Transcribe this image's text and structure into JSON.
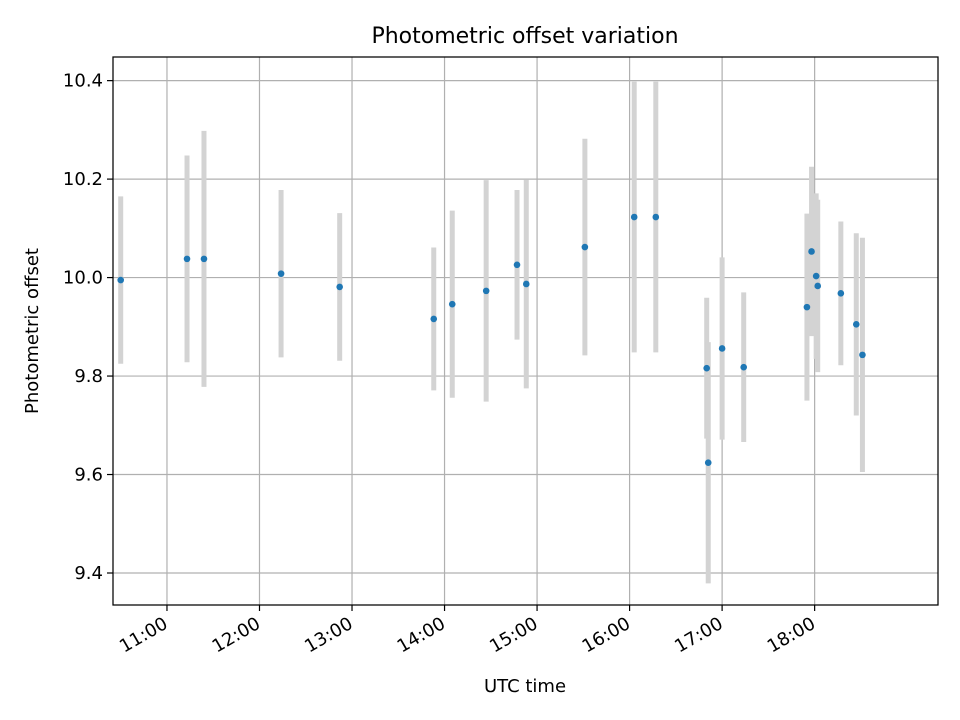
{
  "chart_data": {
    "type": "scatter",
    "title": "Photometric offset variation",
    "xlabel": "UTC time",
    "ylabel": "Photometric offset",
    "x_unit": "UTC time of day (HH:MM)",
    "xlim": [
      "10:25",
      "19:20"
    ],
    "ylim": [
      9.335,
      10.448
    ],
    "x_ticks": [
      "11:00",
      "12:00",
      "13:00",
      "14:00",
      "15:00",
      "16:00",
      "17:00",
      "18:00"
    ],
    "y_ticks": [
      9.4,
      9.6,
      9.8,
      10.0,
      10.2,
      10.4
    ],
    "y_tick_labels": [
      "9.4",
      "9.6",
      "9.8",
      "10.0",
      "10.2",
      "10.4"
    ],
    "grid": true,
    "marker_color": "#1f77b4",
    "errorbar_color": "#d3d3d3",
    "points": [
      {
        "x": "10:30",
        "y": 9.995,
        "yerr": 0.17
      },
      {
        "x": "11:13",
        "y": 10.038,
        "yerr": 0.21
      },
      {
        "x": "11:24",
        "y": 10.038,
        "yerr": 0.26
      },
      {
        "x": "12:14",
        "y": 10.008,
        "yerr": 0.17
      },
      {
        "x": "12:52",
        "y": 9.981,
        "yerr": 0.15
      },
      {
        "x": "13:53",
        "y": 9.916,
        "yerr": 0.145
      },
      {
        "x": "14:05",
        "y": 9.946,
        "yerr": 0.19
      },
      {
        "x": "14:27",
        "y": 9.973,
        "yerr": 0.225
      },
      {
        "x": "14:47",
        "y": 10.026,
        "yerr": 0.152
      },
      {
        "x": "14:53",
        "y": 9.987,
        "yerr": 0.212
      },
      {
        "x": "15:31",
        "y": 10.062,
        "yerr": 0.22
      },
      {
        "x": "16:03",
        "y": 10.123,
        "yerr": 0.275
      },
      {
        "x": "16:17",
        "y": 10.123,
        "yerr": 0.275
      },
      {
        "x": "16:50",
        "y": 9.816,
        "yerr": 0.143
      },
      {
        "x": "16:51",
        "y": 9.624,
        "yerr": 0.245
      },
      {
        "x": "17:00",
        "y": 9.856,
        "yerr": 0.185
      },
      {
        "x": "17:14",
        "y": 9.818,
        "yerr": 0.152
      },
      {
        "x": "17:55",
        "y": 9.94,
        "yerr": 0.19
      },
      {
        "x": "17:58",
        "y": 10.053,
        "yerr": 0.172
      },
      {
        "x": "18:01",
        "y": 10.003,
        "yerr": 0.168
      },
      {
        "x": "18:02",
        "y": 9.983,
        "yerr": 0.175
      },
      {
        "x": "18:17",
        "y": 9.968,
        "yerr": 0.146
      },
      {
        "x": "18:27",
        "y": 9.905,
        "yerr": 0.185
      },
      {
        "x": "18:31",
        "y": 9.843,
        "yerr": 0.238
      }
    ]
  }
}
